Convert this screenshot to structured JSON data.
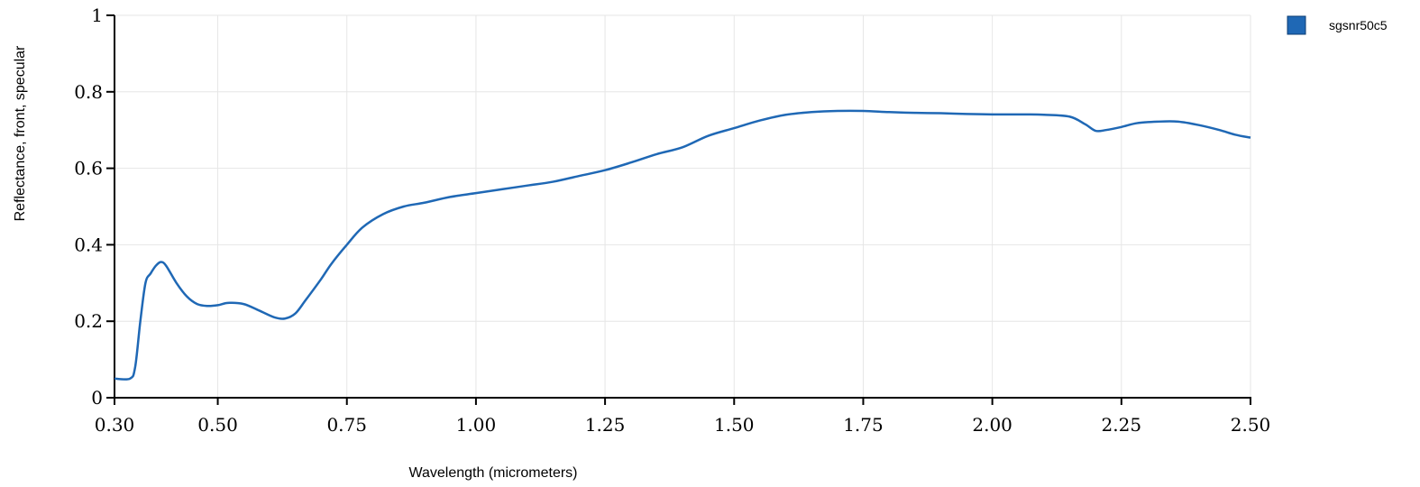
{
  "chart_data": {
    "type": "line",
    "title": "",
    "xlabel": "Wavelength (micrometers)",
    "ylabel": "Reflectance, front, specular",
    "xlim": [
      0.3,
      2.5
    ],
    "ylim": [
      0,
      1
    ],
    "x_ticks": [
      "0.30",
      "0.50",
      "0.75",
      "1.00",
      "1.25",
      "1.50",
      "1.75",
      "2.00",
      "2.25",
      "2.50"
    ],
    "y_ticks": [
      "0",
      "0.2",
      "0.4",
      "0.6",
      "0.8",
      "1"
    ],
    "grid": true,
    "legend_position": "top-right",
    "series": [
      {
        "name": "sgsnr50c5",
        "color": "#1f68b5",
        "x": [
          0.3,
          0.33,
          0.34,
          0.35,
          0.36,
          0.37,
          0.38,
          0.39,
          0.4,
          0.42,
          0.44,
          0.46,
          0.48,
          0.5,
          0.52,
          0.55,
          0.58,
          0.61,
          0.63,
          0.65,
          0.67,
          0.7,
          0.72,
          0.75,
          0.78,
          0.82,
          0.86,
          0.9,
          0.95,
          1.0,
          1.05,
          1.1,
          1.15,
          1.2,
          1.25,
          1.3,
          1.35,
          1.4,
          1.45,
          1.5,
          1.55,
          1.6,
          1.65,
          1.7,
          1.75,
          1.8,
          1.85,
          1.9,
          1.95,
          2.0,
          2.05,
          2.1,
          2.15,
          2.18,
          2.2,
          2.22,
          2.25,
          2.28,
          2.32,
          2.36,
          2.4,
          2.44,
          2.47,
          2.5
        ],
        "y": [
          0.05,
          0.05,
          0.08,
          0.2,
          0.3,
          0.325,
          0.345,
          0.355,
          0.345,
          0.3,
          0.265,
          0.245,
          0.24,
          0.242,
          0.248,
          0.245,
          0.228,
          0.21,
          0.207,
          0.22,
          0.255,
          0.31,
          0.35,
          0.4,
          0.445,
          0.48,
          0.5,
          0.51,
          0.525,
          0.535,
          0.545,
          0.555,
          0.565,
          0.58,
          0.595,
          0.615,
          0.637,
          0.655,
          0.685,
          0.705,
          0.725,
          0.74,
          0.747,
          0.75,
          0.75,
          0.747,
          0.745,
          0.744,
          0.742,
          0.741,
          0.741,
          0.74,
          0.735,
          0.715,
          0.698,
          0.7,
          0.708,
          0.718,
          0.722,
          0.722,
          0.713,
          0.7,
          0.688,
          0.68
        ]
      }
    ]
  }
}
